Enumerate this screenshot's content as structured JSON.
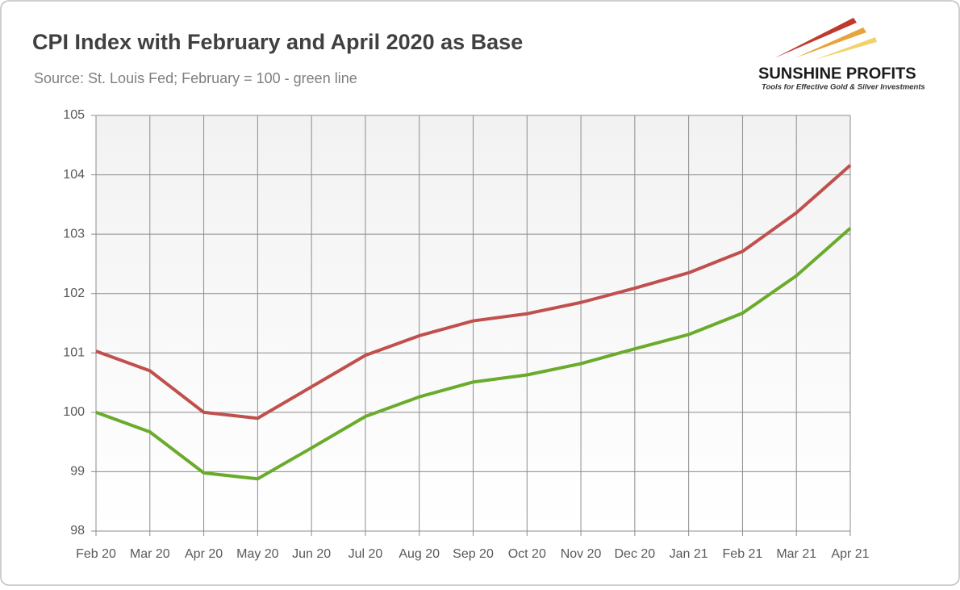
{
  "chart_data": {
    "type": "line",
    "title": "CPI Index with February and April 2020 as Base",
    "subtitle": "Source: St. Louis Fed; February = 100 - green line",
    "categories": [
      "Feb 20",
      "Mar 20",
      "Apr 20",
      "May 20",
      "Jun 20",
      "Jul 20",
      "Aug 20",
      "Sep 20",
      "Oct 20",
      "Nov 20",
      "Dec 20",
      "Jan 21",
      "Feb 21",
      "Mar 21",
      "Apr 21"
    ],
    "series": [
      {
        "color": "#c0504d",
        "values": [
          101.03,
          100.7,
          100.0,
          99.9,
          100.43,
          100.96,
          101.29,
          101.54,
          101.66,
          101.85,
          102.09,
          102.35,
          102.71,
          103.36,
          104.16
        ]
      },
      {
        "color": "#6aab2c",
        "values": [
          100.0,
          99.67,
          98.98,
          98.88,
          99.4,
          99.93,
          100.26,
          100.51,
          100.63,
          100.82,
          101.07,
          101.31,
          101.67,
          102.3,
          103.1
        ]
      }
    ],
    "ylim": [
      98,
      105
    ],
    "yticks": [
      98,
      99,
      100,
      101,
      102,
      103,
      104,
      105
    ],
    "grid": true
  },
  "logo": {
    "name": "SUNSHINE PROFITS",
    "tagline": "Tools for Effective Gold & Silver Investments"
  }
}
